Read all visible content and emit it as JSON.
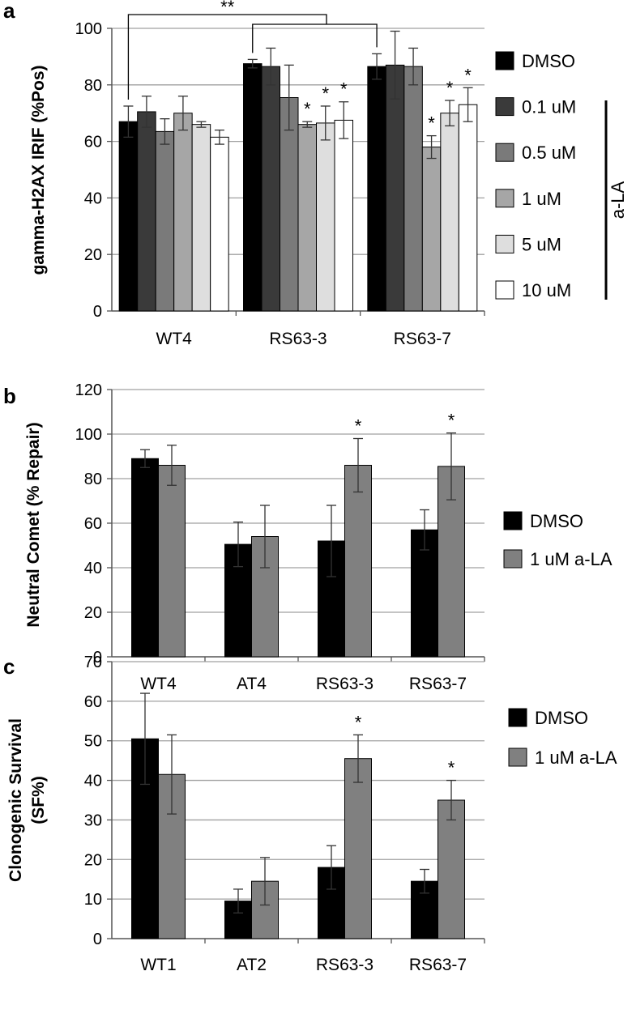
{
  "chart_data": [
    {
      "panel_label": "a",
      "type": "bar",
      "ylabel": "gamma-H2AX IRIF (%Pos)",
      "ylim": [
        0,
        100
      ],
      "yticks": [
        0,
        20,
        40,
        60,
        80,
        100
      ],
      "grid": true,
      "categories": [
        "WT4",
        "RS63-3",
        "RS63-7"
      ],
      "series": [
        {
          "name": "DMSO",
          "color": "#000000",
          "values": [
            67,
            87.5,
            86.5
          ],
          "errors": [
            5.5,
            1.5,
            4.5
          ]
        },
        {
          "name": "0.1 uM",
          "color": "#3a3a3a",
          "values": [
            70.5,
            86.5,
            87
          ],
          "errors": [
            5.5,
            6.5,
            12
          ]
        },
        {
          "name": "0.5 uM",
          "color": "#7a7a7a",
          "values": [
            63.5,
            75.5,
            86.5
          ],
          "errors": [
            4.5,
            11.5,
            6.5
          ]
        },
        {
          "name": "1 uM",
          "color": "#a6a6a6",
          "values": [
            70,
            66,
            58
          ],
          "errors": [
            6,
            1,
            4
          ]
        },
        {
          "name": "5 uM",
          "color": "#dedede",
          "values": [
            66,
            66.5,
            70
          ],
          "errors": [
            1,
            6,
            4.5
          ]
        },
        {
          "name": "10 uM",
          "color": "#ffffff",
          "values": [
            61.5,
            67.5,
            73
          ],
          "errors": [
            2.5,
            6.5,
            6
          ]
        }
      ],
      "legend_bracket_label": "a-LA",
      "significance": [
        {
          "series": 3,
          "category": 1,
          "mark": "*"
        },
        {
          "series": 4,
          "category": 1,
          "mark": "*"
        },
        {
          "series": 5,
          "category": 1,
          "mark": "*"
        },
        {
          "series": 3,
          "category": 2,
          "mark": "*"
        },
        {
          "series": 4,
          "category": 2,
          "mark": "*"
        },
        {
          "series": 5,
          "category": 2,
          "mark": "*"
        }
      ],
      "comparison_mark": "**",
      "legend_position": "right"
    },
    {
      "panel_label": "b",
      "type": "bar",
      "ylabel": "Neutral Comet (% Repair)",
      "ylim": [
        0,
        120
      ],
      "yticks": [
        0,
        20,
        40,
        60,
        80,
        100,
        120
      ],
      "grid": true,
      "categories": [
        "WT4",
        "AT4",
        "RS63-3",
        "RS63-7"
      ],
      "series": [
        {
          "name": "DMSO",
          "color": "#000000",
          "values": [
            89,
            50.5,
            52,
            57
          ],
          "errors": [
            4,
            10,
            16,
            9
          ]
        },
        {
          "name": "1 uM a-LA",
          "color": "#808080",
          "values": [
            86,
            54,
            86,
            85.5
          ],
          "errors": [
            9,
            14,
            12,
            15
          ]
        }
      ],
      "significance": [
        {
          "series": 1,
          "category": 2,
          "mark": "*"
        },
        {
          "series": 1,
          "category": 3,
          "mark": "*"
        }
      ],
      "legend_position": "right"
    },
    {
      "panel_label": "c",
      "type": "bar",
      "ylabel": [
        "Clonogenic Survival",
        "(SF%)"
      ],
      "ylim": [
        0,
        70
      ],
      "yticks": [
        0,
        10,
        20,
        30,
        40,
        50,
        60,
        70
      ],
      "grid": true,
      "categories": [
        "WT1",
        "AT2",
        "RS63-3",
        "RS63-7"
      ],
      "series": [
        {
          "name": "DMSO",
          "color": "#000000",
          "values": [
            50.5,
            9.5,
            18,
            14.5
          ],
          "errors": [
            11.5,
            3,
            5.5,
            3
          ]
        },
        {
          "name": "1 uM a-LA",
          "color": "#808080",
          "values": [
            41.5,
            14.5,
            45.5,
            35
          ],
          "errors": [
            10,
            6,
            6,
            5
          ]
        }
      ],
      "significance": [
        {
          "series": 1,
          "category": 2,
          "mark": "*"
        },
        {
          "series": 1,
          "category": 3,
          "mark": "*"
        }
      ],
      "legend_position": "right"
    }
  ]
}
